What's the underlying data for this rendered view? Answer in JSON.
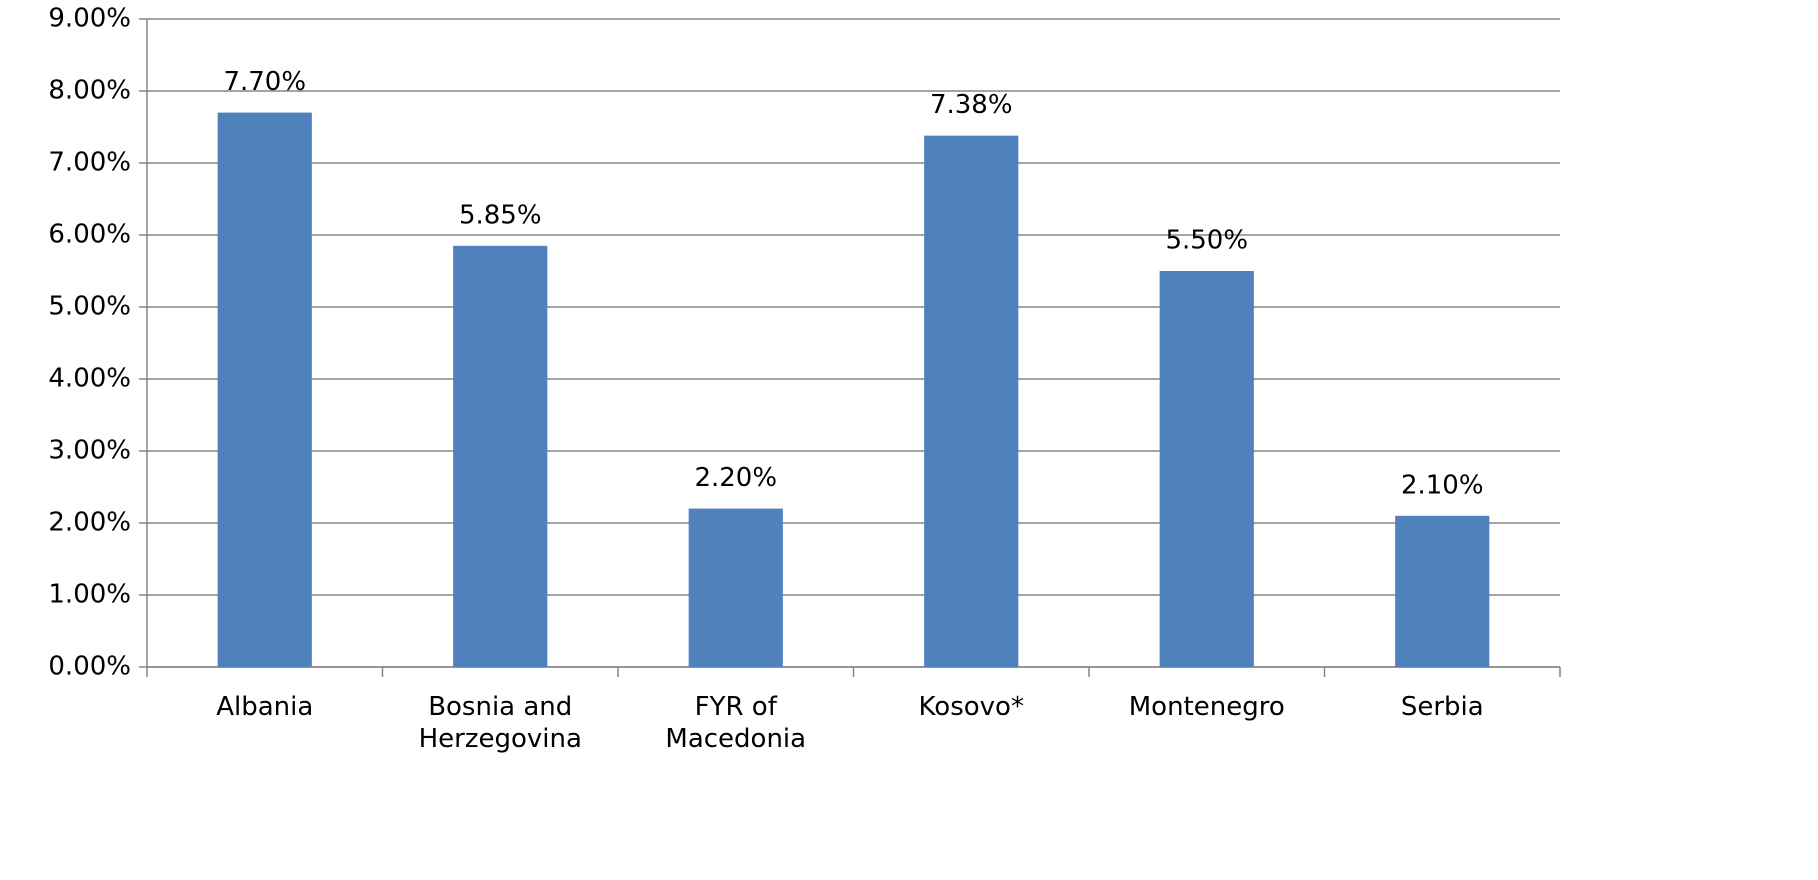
{
  "chart_data": {
    "type": "bar",
    "categories": [
      "Albania",
      "Bosnia and Herzegovina",
      "FYR of Macedonia",
      "Kosovo*",
      "Montenegro",
      "Serbia"
    ],
    "values": [
      7.7,
      5.85,
      2.2,
      7.38,
      5.5,
      2.1
    ],
    "value_labels": [
      "7.70%",
      "5.85%",
      "2.20%",
      "7.38%",
      "5.50%",
      "2.10%"
    ],
    "color": "#4f81bd",
    "ylim": [
      0,
      9
    ],
    "yticks": [
      {
        "value": 0,
        "label": "0.00%"
      },
      {
        "value": 1,
        "label": "1.00%"
      },
      {
        "value": 2,
        "label": "2.00%"
      },
      {
        "value": 3,
        "label": "3.00%"
      },
      {
        "value": 4,
        "label": "4.00%"
      },
      {
        "value": 5,
        "label": "5.00%"
      },
      {
        "value": 6,
        "label": "6.00%"
      },
      {
        "value": 7,
        "label": "7.00%"
      },
      {
        "value": 8,
        "label": "8.00%"
      },
      {
        "value": 9,
        "label": "9.00%"
      }
    ],
    "grid": true
  }
}
